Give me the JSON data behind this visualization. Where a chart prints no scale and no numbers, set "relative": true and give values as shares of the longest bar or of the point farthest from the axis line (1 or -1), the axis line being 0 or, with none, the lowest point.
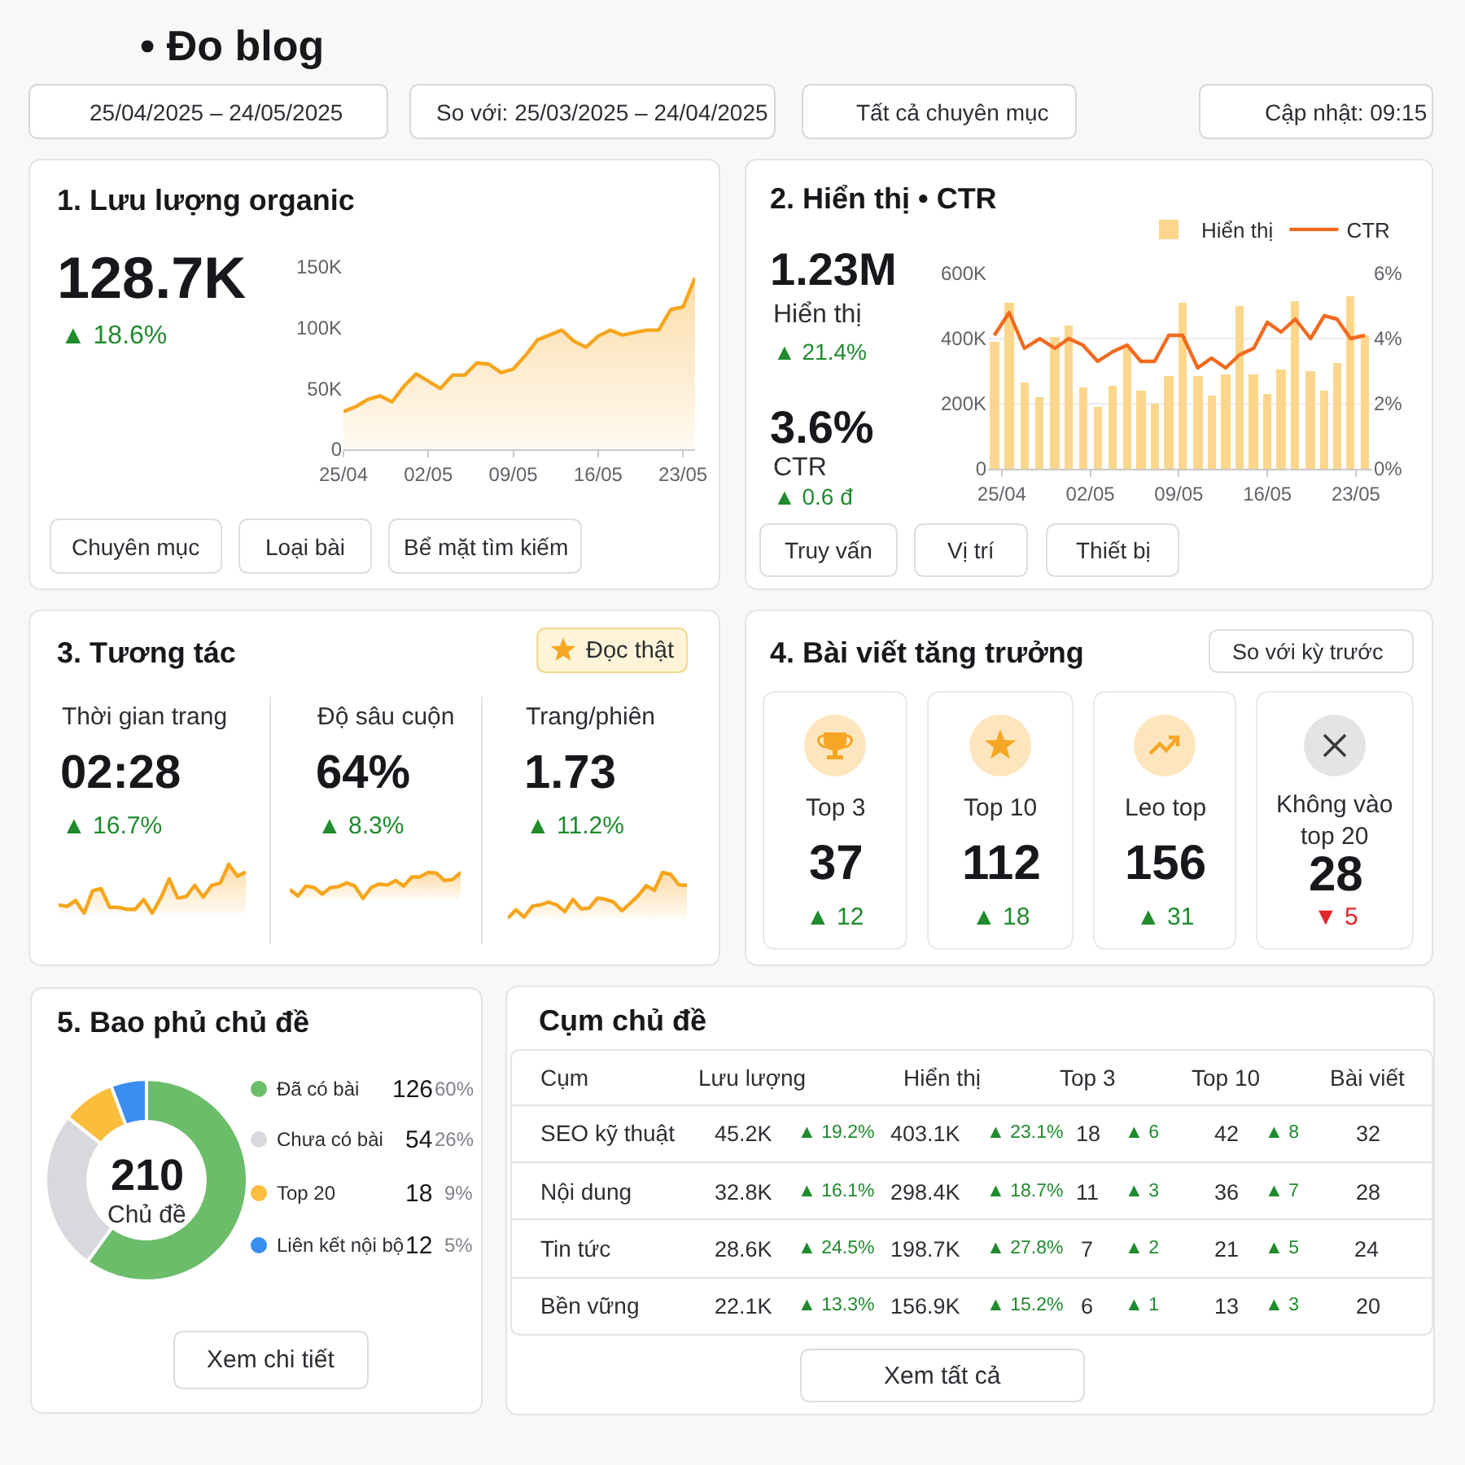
{
  "chart_data": [
    {
      "type": "other",
      "title": "• Đo blog",
      "annotations": [
        "25/04/2025 – 24/05/2025",
        "So với: 25/03/2025 – 24/04/2025",
        "Tất cả chuyên mục",
        "Cập nhật: 09:15"
      ]
    },
    {
      "type": "area",
      "title": "1. Lưu lượng organic",
      "annotations": [
        "128.7K",
        "▲ 18.6%",
        "Chuyên mục",
        "Loại bài",
        "Bể mặt tìm kiếm"
      ],
      "x": [
        "2025-04-25",
        "2025-04-26",
        "2025-04-27",
        "2025-04-28",
        "2025-04-29",
        "2025-04-30",
        "2025-05-01",
        "2025-05-02",
        "2025-05-03",
        "2025-05-04",
        "2025-05-05",
        "2025-05-06",
        "2025-05-07",
        "2025-05-08",
        "2025-05-09",
        "2025-05-10",
        "2025-05-11",
        "2025-05-12",
        "2025-05-13",
        "2025-05-14",
        "2025-05-15",
        "2025-05-16",
        "2025-05-17",
        "2025-05-18",
        "2025-05-19",
        "2025-05-20",
        "2025-05-21",
        "2025-05-22",
        "2025-05-23",
        "2025-05-24"
      ],
      "values": [
        31,
        35,
        41,
        44,
        39,
        52,
        62,
        56,
        50,
        61,
        61,
        71,
        70,
        63,
        66,
        77,
        90,
        94,
        98,
        89,
        84,
        93,
        98,
        94,
        96,
        98,
        98,
        115,
        117,
        141
      ],
      "color": "#f7a51c",
      "xlim": [
        "2025-04-25",
        "2025-05-24"
      ],
      "xticks": [
        {
          "value": "2025-04-25",
          "label": "25/04"
        },
        {
          "value": "2025-05-02",
          "label": "02/05"
        },
        {
          "value": "2025-05-09",
          "label": "09/05"
        },
        {
          "value": "2025-05-16",
          "label": "16/05"
        },
        {
          "value": "2025-05-23",
          "label": "23/05"
        }
      ],
      "ylim": [
        0,
        150
      ],
      "yticks": [
        0,
        {
          "value": 50,
          "label": "50K"
        },
        {
          "value": 100,
          "label": "100K"
        },
        {
          "value": 150,
          "label": "150K"
        }
      ]
    },
    {
      "type": "bar",
      "title": "2. Hiển thị • CTR",
      "annotations": [
        "1.23M",
        "Hiển thị",
        "▲ 21.4%",
        "3.6%",
        "CTR",
        "▲ 0.6 đ",
        "Truy vấn",
        "Vị trí",
        "Thiết bị"
      ],
      "x": [
        "2025-04-24T10:00",
        "2025-04-25T14:00",
        "2025-04-26T19:00",
        "2025-04-28T00:00",
        "2025-04-29T05:00",
        "2025-04-30T07:00",
        "2025-05-01T10:00",
        "2025-05-02T14:00",
        "2025-05-03T19:00",
        "2025-05-04T22:00",
        "2025-05-06T00:00",
        "2025-05-07T02:00",
        "2025-05-08T05:00",
        "2025-05-09T07:00",
        "2025-05-10T12:00",
        "2025-05-11T14:00",
        "2025-05-12T17:00",
        "2025-05-13T19:00",
        "2025-05-14T22:00",
        "2025-05-16T00:00",
        "2025-05-17T02:00",
        "2025-05-18T05:00",
        "2025-05-19T10:00",
        "2025-05-20T12:00",
        "2025-05-21T12:00",
        "2025-05-22T14:00",
        "2025-05-23T17:00"
      ],
      "series": [
        {
          "name": "Hiển thị",
          "type": "bar",
          "color": "#fcd68c",
          "values": [
            390,
            510,
            265,
            220,
            405,
            440,
            250,
            190,
            255,
            370,
            240,
            200,
            285,
            510,
            285,
            225,
            290,
            500,
            290,
            230,
            305,
            515,
            300,
            240,
            325,
            530,
            410
          ]
        },
        {
          "name": "CTR",
          "type": "line",
          "axis": "y2",
          "color": "#f26a1d",
          "values": [
            4.1,
            4.8,
            3.7,
            4.0,
            3.7,
            4.0,
            3.8,
            3.3,
            3.6,
            3.8,
            3.3,
            3.3,
            4.1,
            4.1,
            3.1,
            3.4,
            3.1,
            3.5,
            3.7,
            4.5,
            4.2,
            4.6,
            4.0,
            4.7,
            4.6,
            4.0,
            4.1
          ]
        }
      ],
      "xlim": [
        "2025-04-23T22:00",
        "2025-05-24T07:00"
      ],
      "xticks": [
        {
          "value": "2025-04-25",
          "label": "25/04"
        },
        {
          "value": "2025-05-02",
          "label": "02/05"
        },
        {
          "value": "2025-05-09",
          "label": "09/05"
        },
        {
          "value": "2025-05-16",
          "label": "16/05"
        },
        {
          "value": "2025-05-23",
          "label": "23/05"
        }
      ],
      "ylim": [
        0,
        600
      ],
      "yticks": [
        0,
        {
          "value": 200,
          "label": "200K"
        },
        {
          "value": 400,
          "label": "400K"
        },
        {
          "value": 600,
          "label": "600K"
        }
      ],
      "y2lim": [
        0,
        6
      ],
      "y2ticks": [
        {
          "value": 0,
          "label": "0%"
        },
        {
          "value": 2,
          "label": "2%"
        },
        {
          "value": 4,
          "label": "4%"
        },
        {
          "value": 6,
          "label": "6%"
        }
      ],
      "grid": "y",
      "legend": "top right"
    },
    {
      "type": "other",
      "title": "3. Tương tác",
      "annotations": [
        "Đọc thật"
      ]
    },
    {
      "type": "area",
      "relative": true,
      "title": "Thời gian trang",
      "annotations": [
        "02:28",
        "▲ 16.7%"
      ],
      "categories": [
        null,
        null,
        null,
        null,
        null,
        null,
        null,
        null,
        null,
        null,
        null,
        null,
        null,
        null,
        null,
        null,
        null,
        null,
        null,
        null,
        null,
        null,
        null
      ],
      "values": [
        0.17,
        0.14,
        0.26,
        0,
        0.46,
        0.5,
        0.12,
        0.12,
        0.08,
        0.08,
        0.28,
        0,
        0.31,
        0.7,
        0.31,
        0.34,
        0.57,
        0.33,
        0.57,
        0.62,
        1,
        0.76,
        0.84
      ],
      "color": "#f7a51c"
    },
    {
      "type": "area",
      "relative": true,
      "title": "Độ sâu cuộn",
      "annotations": [
        "64%",
        "▲ 8.3%"
      ],
      "categories": [
        null,
        null,
        null,
        null,
        null,
        null,
        null,
        null,
        null,
        null,
        null,
        null,
        null,
        null,
        null,
        null,
        null,
        null,
        null,
        null,
        null,
        null
      ],
      "values": [
        0.35,
        0.1,
        0.48,
        0.42,
        0.17,
        0.42,
        0.46,
        0.6,
        0.48,
        0,
        0.42,
        0.56,
        0.52,
        0.69,
        0.48,
        0.83,
        0.83,
        1,
        0.98,
        0.69,
        0.73,
        1
      ],
      "color": "#f7a51c"
    },
    {
      "type": "area",
      "relative": true,
      "title": "Trang/phiên",
      "annotations": [
        "1.73",
        "▲ 11.2%"
      ],
      "categories": [
        null,
        null,
        null,
        null,
        null,
        null,
        null,
        null,
        null,
        null,
        null,
        null,
        null,
        null,
        null,
        null,
        null,
        null,
        null,
        null,
        null,
        null,
        null
      ],
      "values": [
        0,
        0.18,
        0.02,
        0.26,
        0.29,
        0.35,
        0.29,
        0.14,
        0.41,
        0.2,
        0.22,
        0.44,
        0.41,
        0.35,
        0.16,
        0.32,
        0.49,
        0.71,
        0.61,
        1,
        0.96,
        0.73,
        0.72
      ],
      "color": "#f7a51c"
    },
    {
      "type": "other",
      "title": "4. Bài viết tăng trưởng",
      "annotations": [
        "So với kỳ trước",
        "Top 3",
        "37",
        "▲ 12",
        "Top 10",
        "112",
        "▲ 18",
        "Leo top",
        "156",
        "▲ 31",
        "Không vào top 20",
        "28",
        "▼ 5"
      ]
    },
    {
      "type": "donut",
      "title": "5. Bao phủ chủ đề",
      "categories": [
        "Đã có bài",
        "Chưa có bài",
        "Top 20",
        "Liên kết nội bộ"
      ],
      "values": [
        126,
        54,
        18,
        12
      ],
      "colors": [
        "#6bbd6a",
        "#d8d9de",
        "#fbbd3c",
        "#3a8ef2"
      ],
      "data_labels": true,
      "legend": "right",
      "annotations": [
        "210",
        "Chủ đề",
        "60%",
        "26%",
        "9%",
        "5%",
        "Xem chi tiết"
      ]
    },
    {
      "type": "other",
      "title": "Cụm chủ đề",
      "ylabel": "Cụm",
      "categories": [
        "SEO kỹ thuật",
        "Nội dung",
        "Tin tức",
        "Bền vững"
      ],
      "series": [
        {
          "name": "Lưu lượng",
          "values": [
            45.2,
            32.8,
            28.6,
            22.1
          ],
          "value_labels": [
            "45.2K",
            "32.8K",
            "28.6K",
            "22.1K"
          ]
        },
        {
          "values": [
            19.2,
            16.1,
            24.5,
            13.3
          ],
          "value_labels": [
            "▲ 19.2%",
            "▲ 16.1%",
            "▲ 24.5%",
            "▲ 13.3%"
          ],
          "color": "#1e8b2d"
        },
        {
          "name": "Hiển thị",
          "values": [
            403.1,
            298.4,
            198.7,
            156.9
          ],
          "value_labels": [
            "403.1K",
            "298.4K",
            "198.7K",
            "156.9K"
          ]
        },
        {
          "values": [
            23.1,
            18.7,
            27.8,
            15.2
          ],
          "value_labels": [
            "▲ 23.1%",
            "▲ 18.7%",
            "▲ 27.8%",
            "▲ 15.2%"
          ],
          "color": "#1e8b2d"
        },
        {
          "name": "Top 3",
          "values": [
            18,
            11,
            7,
            6
          ]
        },
        {
          "values": [
            6,
            3,
            2,
            1
          ],
          "value_labels": [
            "▲ 6",
            "▲ 3",
            "▲ 2",
            "▲ 1"
          ],
          "color": "#1e8b2d"
        },
        {
          "name": "Top 10",
          "values": [
            42,
            36,
            21,
            13
          ]
        },
        {
          "values": [
            8,
            7,
            5,
            3
          ],
          "value_labels": [
            "▲ 8",
            "▲ 7",
            "▲ 5",
            "▲ 3"
          ],
          "color": "#1e8b2d"
        },
        {
          "name": "Bài viết",
          "values": [
            32,
            28,
            24,
            20
          ]
        }
      ],
      "data_labels": true,
      "annotations": [
        "Xem tất cả"
      ]
    }
  ]
}
